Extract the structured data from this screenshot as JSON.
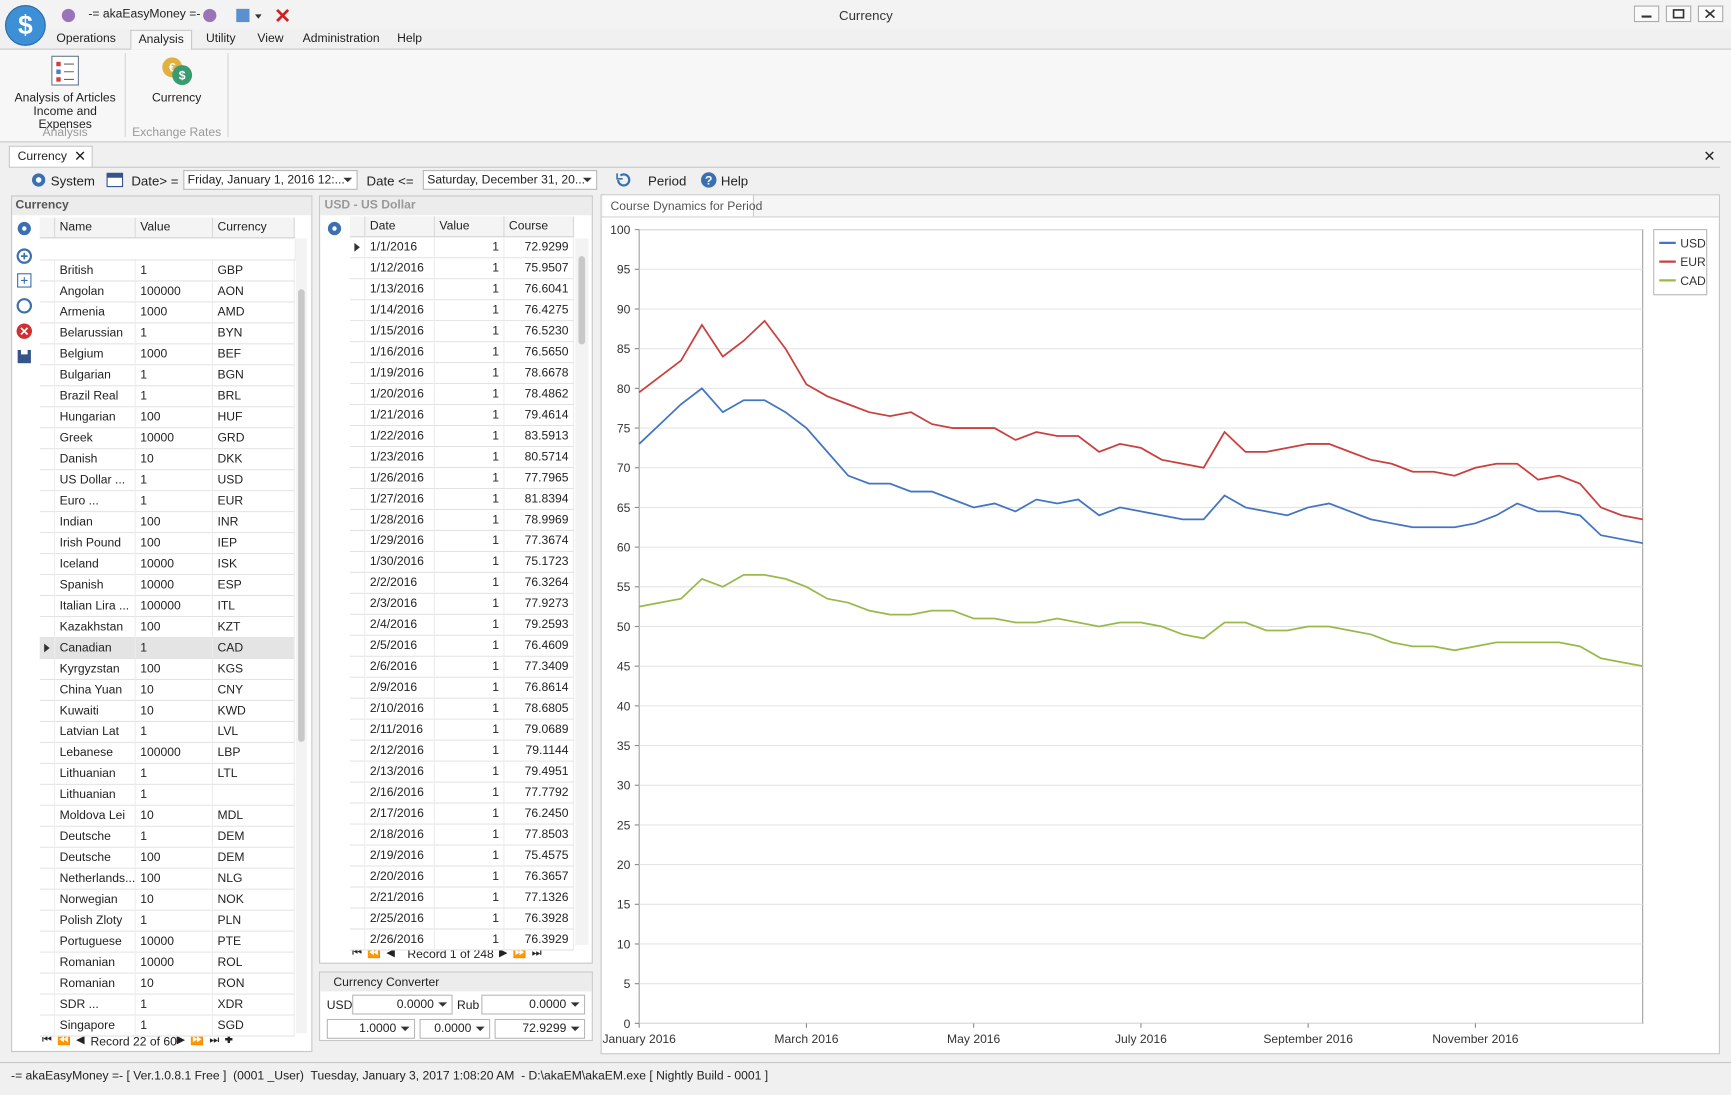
{
  "window": {
    "app_title": "-= akaEasyMoney =-",
    "title": "Currency"
  },
  "ribbon": {
    "tabs": [
      "Operations",
      "Analysis",
      "Utility",
      "View",
      "Administration",
      "Help"
    ],
    "active_tab": 1,
    "groups": [
      {
        "label": "Analysis",
        "button": "Analysis of Articles Income and Expenses"
      },
      {
        "label": "Exchange Rates",
        "button": "Currency"
      }
    ]
  },
  "document_tab": "Currency",
  "toolbar": {
    "system": "System",
    "date_from_label": "Date> =",
    "date_from": "Friday, January 1, 2016 12:...",
    "date_to_label": "Date <=",
    "date_to": "Saturday, December 31, 20...",
    "period": "Period",
    "help": "Help"
  },
  "currency_panel": {
    "title": "Currency",
    "columns": [
      "Name",
      "Value",
      "Currency"
    ],
    "selected_row": 18,
    "navigator": "Record 22 of 60",
    "rows": [
      [
        "British Poun...",
        1,
        "GBP"
      ],
      [
        "Angolan ne...",
        100000,
        "AON"
      ],
      [
        "Armenia Dra...",
        1000,
        "AMD"
      ],
      [
        "Belarussian ...",
        1,
        "BYN"
      ],
      [
        "Belgium Fra...",
        1000,
        "BEF"
      ],
      [
        "Bulgarian le...",
        1,
        "BGN"
      ],
      [
        "Brazil Real ...",
        1,
        "BRL"
      ],
      [
        "Hungarian F...",
        100,
        "HUF"
      ],
      [
        "Greek Drach...",
        10000,
        "GRD"
      ],
      [
        "Danish Kron...",
        10,
        "DKK"
      ],
      [
        "US Dollar ...",
        1,
        "USD"
      ],
      [
        "Euro ...",
        1,
        "EUR"
      ],
      [
        "Indian Rupe...",
        100,
        "INR"
      ],
      [
        "Irish Pound ...",
        100,
        "IEP"
      ],
      [
        "Iceland Kro...",
        10000,
        "ISK"
      ],
      [
        "Spanish Pes...",
        10000,
        "ESP"
      ],
      [
        "Italian Lira ...",
        100000,
        "ITL"
      ],
      [
        "Kazakhstan ...",
        100,
        "KZT"
      ],
      [
        "Canadian D...",
        1,
        "CAD"
      ],
      [
        "Kyrgyzstan ...",
        100,
        "KGS"
      ],
      [
        "China Yuan ...",
        10,
        "CNY"
      ],
      [
        "Kuwaiti Dina...",
        10,
        "KWD"
      ],
      [
        "Latvian Lat ...",
        1,
        "LVL"
      ],
      [
        "Lebanese P...",
        100000,
        "LBP"
      ],
      [
        "Lithuanian Li...",
        1,
        "LTL"
      ],
      [
        "Lithuanian t...",
        1,
        null
      ],
      [
        "Moldova Lei ...",
        10,
        "MDL"
      ],
      [
        "Deutsche M...",
        1,
        "DEM"
      ],
      [
        "Deutsche M...",
        100,
        "DEM"
      ],
      [
        "Netherlands...",
        100,
        "NLG"
      ],
      [
        "Norwegian ...",
        10,
        "NOK"
      ],
      [
        "Polish Zloty ...",
        1,
        "PLN"
      ],
      [
        "Portuguese ...",
        10000,
        "PTE"
      ],
      [
        "Romanian L...",
        10000,
        "ROL"
      ],
      [
        "Romanian L...",
        10,
        "RON"
      ],
      [
        "SDR ...",
        1,
        "XDR"
      ],
      [
        "Singapore D...",
        1,
        "SGD"
      ]
    ]
  },
  "rates_panel": {
    "title": "USD - US Dollar",
    "columns": [
      "Date",
      "Value",
      "Course"
    ],
    "selected_row": 0,
    "navigator": "Record 1 of 248",
    "rows": [
      [
        "1/1/2016",
        1,
        "72.9299"
      ],
      [
        "1/12/2016",
        1,
        "75.9507"
      ],
      [
        "1/13/2016",
        1,
        "76.6041"
      ],
      [
        "1/14/2016",
        1,
        "76.4275"
      ],
      [
        "1/15/2016",
        1,
        "76.5230"
      ],
      [
        "1/16/2016",
        1,
        "76.5650"
      ],
      [
        "1/19/2016",
        1,
        "78.6678"
      ],
      [
        "1/20/2016",
        1,
        "78.4862"
      ],
      [
        "1/21/2016",
        1,
        "79.4614"
      ],
      [
        "1/22/2016",
        1,
        "83.5913"
      ],
      [
        "1/23/2016",
        1,
        "80.5714"
      ],
      [
        "1/26/2016",
        1,
        "77.7965"
      ],
      [
        "1/27/2016",
        1,
        "81.8394"
      ],
      [
        "1/28/2016",
        1,
        "78.9969"
      ],
      [
        "1/29/2016",
        1,
        "77.3674"
      ],
      [
        "1/30/2016",
        1,
        "75.1723"
      ],
      [
        "2/2/2016",
        1,
        "76.3264"
      ],
      [
        "2/3/2016",
        1,
        "77.9273"
      ],
      [
        "2/4/2016",
        1,
        "79.2593"
      ],
      [
        "2/5/2016",
        1,
        "76.4609"
      ],
      [
        "2/6/2016",
        1,
        "77.3409"
      ],
      [
        "2/9/2016",
        1,
        "76.8614"
      ],
      [
        "2/10/2016",
        1,
        "78.6805"
      ],
      [
        "2/11/2016",
        1,
        "79.0689"
      ],
      [
        "2/12/2016",
        1,
        "79.1144"
      ],
      [
        "2/13/2016",
        1,
        "79.4951"
      ],
      [
        "2/16/2016",
        1,
        "77.7792"
      ],
      [
        "2/17/2016",
        1,
        "76.2450"
      ],
      [
        "2/18/2016",
        1,
        "77.8503"
      ],
      [
        "2/19/2016",
        1,
        "75.4575"
      ],
      [
        "2/20/2016",
        1,
        "76.3657"
      ],
      [
        "2/21/2016",
        1,
        "77.1326"
      ],
      [
        "2/25/2016",
        1,
        "76.3928"
      ],
      [
        "2/26/2016",
        1,
        "76.3929"
      ]
    ]
  },
  "converter": {
    "title": "Currency Converter",
    "from": "USD",
    "from_amount": "0.0000",
    "to": "Rub",
    "to_amount": "0.0000",
    "rate_value": "1.0000",
    "rate_amount": "0.0000",
    "rate": "72.9299"
  },
  "chart_tab": "Course Dynamics for Period",
  "chart_data": {
    "type": "line",
    "categories": [
      "January 2016",
      null,
      null,
      null,
      null,
      null,
      null,
      null,
      "March 2016",
      null,
      null,
      null,
      null,
      null,
      null,
      null,
      "May 2016",
      null,
      null,
      null,
      null,
      null,
      null,
      null,
      "July 2016",
      null,
      null,
      null,
      null,
      null,
      null,
      null,
      "September 2016",
      null,
      null,
      null,
      null,
      null,
      null,
      null,
      "November 2016",
      null,
      null,
      null,
      null,
      null,
      null,
      null,
      null
    ],
    "series": [
      {
        "name": "USD",
        "color": "#4375c2",
        "values": [
          73,
          75.5,
          78,
          80,
          77,
          78.5,
          78.5,
          77,
          75,
          72,
          69,
          68,
          68,
          67,
          67,
          66,
          65,
          65.5,
          64.5,
          66,
          65.5,
          66,
          64,
          65,
          64.5,
          64,
          63.5,
          63.5,
          66.5,
          65,
          64.5,
          64,
          65,
          65.5,
          64.5,
          63.5,
          63,
          62.5,
          62.5,
          62.5,
          63,
          64,
          65.5,
          64.5,
          64.5,
          64,
          61.5,
          61,
          60.5
        ]
      },
      {
        "name": "EUR",
        "color": "#c9403e",
        "values": [
          79.5,
          81.5,
          83.5,
          88,
          84,
          86,
          88.5,
          85,
          80.5,
          79,
          78,
          77,
          76.5,
          77,
          75.5,
          75,
          75,
          75,
          73.5,
          74.5,
          74,
          74,
          72,
          73,
          72.5,
          71,
          70.5,
          70,
          74.5,
          72,
          72,
          72.5,
          73,
          73,
          72,
          71,
          70.5,
          69.5,
          69.5,
          69,
          70,
          70.5,
          70.5,
          68.5,
          69,
          68,
          65,
          64,
          63.5
        ]
      },
      {
        "name": "CAD",
        "color": "#98ba4b",
        "values": [
          52.5,
          53,
          53.5,
          56,
          55,
          56.5,
          56.5,
          56,
          55,
          53.5,
          53,
          52,
          51.5,
          51.5,
          52,
          52,
          51,
          51,
          50.5,
          50.5,
          51,
          50.5,
          50,
          50.5,
          50.5,
          50,
          49,
          48.5,
          50.5,
          50.5,
          49.5,
          49.5,
          50,
          50,
          49.5,
          49,
          48,
          47.5,
          47.5,
          47,
          47.5,
          48,
          48,
          48,
          48,
          47.5,
          46,
          45.5,
          45
        ]
      }
    ],
    "ylim": [
      0,
      100
    ],
    "yticks": [
      0,
      5,
      10,
      15,
      20,
      25,
      30,
      35,
      40,
      45,
      50,
      55,
      60,
      65,
      70,
      75,
      80,
      85,
      90,
      95,
      100
    ],
    "grid": true,
    "legend": "top-right"
  },
  "status_bar": "-= akaEasyMoney =- [ Ver.1.0.8.1 Free ]  (0001 _User)  Tuesday, January 3, 2017 1:08:20 AM  - D:\\akaEM\\akaEM.exe [ Nightly Build - 0001 ]"
}
